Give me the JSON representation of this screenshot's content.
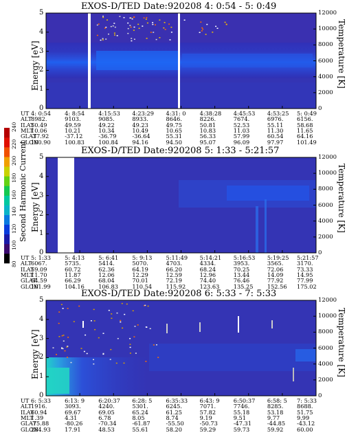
{
  "panels": [
    {
      "title": "EXOS-D/TED   Date:920208  4: 0:54 - 5: 0:49",
      "ylabel": "Energy [eV]",
      "y2label": "Temperature [K]",
      "y_ticks": [
        "0",
        "1",
        "2",
        "3",
        "4",
        "5"
      ],
      "y2_ticks": [
        "0",
        "2000",
        "4000",
        "6000",
        "8000",
        "10000",
        "12000"
      ],
      "rows": {
        "UT": [
          "4: 0:54",
          "4: 8:54",
          "4:15:53",
          "4:23:29",
          "4:31: 0",
          "4:38:28",
          "4:45:53",
          "4:53:25",
          "5: 0:49"
        ],
        "ALT": [
          "8982.",
          "9103.",
          "9085.",
          "8933.",
          "8646.",
          "8226.",
          "7674.",
          "6976.",
          "6156."
        ],
        "ILAT": [
          "50.49",
          "49.59",
          "49.22",
          "49.23",
          "49.75",
          "50.81",
          "52.53",
          "55.11",
          "58.68"
        ],
        "MLT": [
          "10.06",
          "10.21",
          "10.34",
          "10.49",
          "10.65",
          "10.83",
          "11.03",
          "11.30",
          "11.65"
        ],
        "GLAT": [
          "-37.92",
          "-37.12",
          "-36.79",
          "-36.64",
          "55.31",
          "56.33",
          "57.99",
          "60.54",
          "64.16"
        ],
        "GLON": [
          "100.90",
          "100.83",
          "100.84",
          "94.16",
          "94.50",
          "95.07",
          "96.09",
          "97.97",
          "101.49"
        ]
      }
    },
    {
      "title": "EXOS-D/TED   Date:920208  5: 1:33 - 5:21:57",
      "ylabel": "Energy [eV]",
      "y2label": "Temperature [K]",
      "y_ticks": [
        "0",
        "1",
        "2",
        "3",
        "4",
        "5"
      ],
      "y2_ticks": [
        "0",
        "2000",
        "4000",
        "6000",
        "8000",
        "10000",
        "12000"
      ],
      "rows": {
        "UT": [
          "5: 1:33",
          "5: 4:13",
          "5: 6:41",
          "5: 9:13",
          "5:11:49",
          "5:14:21",
          "5:16:53",
          "5:19:25",
          "5:21:57"
        ],
        "ALT": [
          "6067.",
          "5735.",
          "5414.",
          "5070.",
          "4703.",
          "4334.",
          "3953.",
          "3565.",
          "3170."
        ],
        "ILAT": [
          "59.09",
          "60.72",
          "62.36",
          "64.19",
          "66.20",
          "68.24",
          "70.25",
          "72.06",
          "73.33"
        ],
        "MLT": [
          "11.70",
          "11.87",
          "12.06",
          "12.29",
          "12.59",
          "12.96",
          "13.44",
          "14.09",
          "14.95"
        ],
        "GLAT": [
          "64.59",
          "66.29",
          "68.04",
          "70.01",
          "72.19",
          "74.40",
          "76.46",
          "77.92",
          "77.99"
        ],
        "GLON": [
          "101.99",
          "104.16",
          "106.83",
          "110.54",
          "115.92",
          "123.63",
          "135.25",
          "152.56",
          "175.02"
        ]
      }
    },
    {
      "title": "EXOS-D/TED   Date:920208  6: 5:33 - 7: 5:33",
      "ylabel": "Energy [eV]",
      "y2label": "Temperature [K]",
      "y_ticks": [
        "0",
        "1",
        "2",
        "3",
        "4",
        "5"
      ],
      "y2_ticks": [
        "0",
        "2000",
        "4000",
        "6000",
        "8000",
        "10000",
        "12000"
      ],
      "rows": {
        "UT": [
          "6: 5:33",
          "6:13: 9",
          "6:20:37",
          "6:28: 5",
          "6:35:33",
          "6:43: 9",
          "6:50:37",
          "6:58: 5",
          "7: 5:33"
        ],
        "ALT": [
          "1916.",
          "3093.",
          "4240.",
          "5301.",
          "6245.",
          "7071.",
          "7746.",
          "8285.",
          "8688."
        ],
        "ILAT": [
          "60.94",
          "69.67",
          "69.05",
          "65.24",
          "61.25",
          "57.82",
          "55.18",
          "53.18",
          "51.75"
        ],
        "MLT": [
          "1.39",
          "4.31",
          "6.78",
          "8.05",
          "8.74",
          "9.19",
          "9.51",
          "9.77",
          "9.99"
        ],
        "GLAT": [
          "-75.88",
          "-80.26",
          "-70.34",
          "-61.87",
          "-55.50",
          "-50.73",
          "-47.31",
          "-44.85",
          "-43.12"
        ],
        "GLON": [
          "284.93",
          "17.91",
          "48.53",
          "55.61",
          "58.20",
          "59.29",
          "59.73",
          "59.92",
          "60.00"
        ]
      }
    }
  ],
  "colorbar": {
    "label": "Second Harmonic Current",
    "ticks": [
      "80",
      "100",
      "120",
      "140",
      "160",
      "180",
      "200",
      "220",
      "240"
    ],
    "colors": [
      "#000000",
      "#3a0a6e",
      "#1a1aa8",
      "#0a3cdc",
      "#0a7ae0",
      "#0ab4c8",
      "#00c8a0",
      "#14c850",
      "#64d214",
      "#c8d200",
      "#f0a000",
      "#f05000",
      "#e01000",
      "#b40000"
    ]
  },
  "chart_data": [
    {
      "type": "heatmap",
      "title": "EXOS-D/TED   Date:920208  4: 0:54 - 5: 0:49",
      "xlabel": "UT",
      "ylabel": "Energy [eV]",
      "y2label": "Temperature [K]",
      "ylim": [
        0,
        5
      ],
      "y2lim": [
        0,
        12000
      ],
      "x_ticks": [
        "4: 0:54",
        "4: 8:54",
        "4:15:53",
        "4:23:29",
        "4:31: 0",
        "4:38:28",
        "4:45:53",
        "4:53:25",
        "5: 0:49"
      ],
      "dominant_band_ev": [
        2.0,
        3.2
      ]
    },
    {
      "type": "heatmap",
      "title": "EXOS-D/TED   Date:920208  5: 1:33 - 5:21:57",
      "xlabel": "UT",
      "ylabel": "Energy [eV]",
      "y2label": "Temperature [K]",
      "ylim": [
        0,
        5
      ],
      "y2lim": [
        0,
        12000
      ],
      "x_ticks": [
        "5: 1:33",
        "5: 4:13",
        "5: 6:41",
        "5: 9:13",
        "5:11:49",
        "5:14:21",
        "5:16:53",
        "5:19:25",
        "5:21:57"
      ]
    },
    {
      "type": "heatmap",
      "title": "EXOS-D/TED   Date:920208  6: 5:33 - 7: 5:33",
      "xlabel": "UT",
      "ylabel": "Energy [eV]",
      "y2label": "Temperature [K]",
      "ylim": [
        0,
        5
      ],
      "y2lim": [
        0,
        12000
      ],
      "x_ticks": [
        "6: 5:33",
        "6:13: 9",
        "6:20:37",
        "6:28: 5",
        "6:35:33",
        "6:43: 9",
        "6:50:37",
        "6:58: 5",
        "7: 5:33"
      ]
    }
  ]
}
